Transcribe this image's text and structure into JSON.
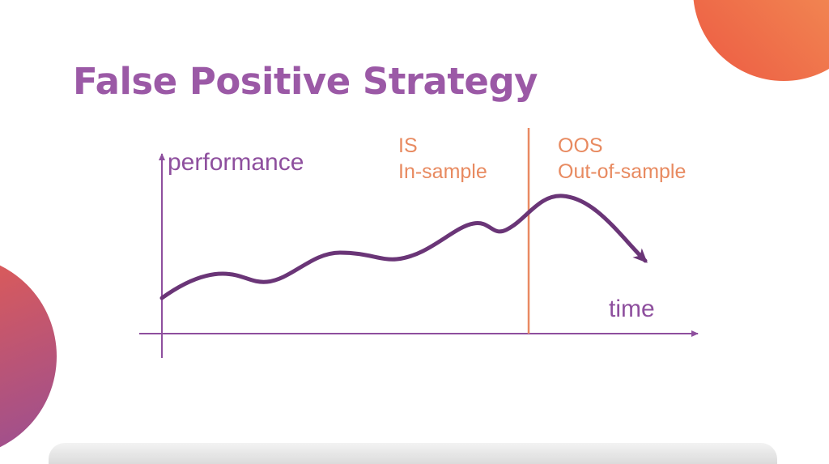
{
  "slide": {
    "title": "False Positive Strategy"
  },
  "diagram": {
    "y_axis_label": "performance",
    "x_axis_label": "time",
    "in_sample": {
      "line1": "IS",
      "line2": "In-sample"
    },
    "out_of_sample": {
      "line1": "OOS",
      "line2": "Out-of-sample"
    }
  },
  "colors": {
    "title": "#9b59a6",
    "axis": "#8e4f9e",
    "curve": "#6a3577",
    "divider": "#e98a63",
    "label_orange": "#e88a60",
    "decor_top": "#f2704a",
    "decor_left": "#c9546a"
  }
}
